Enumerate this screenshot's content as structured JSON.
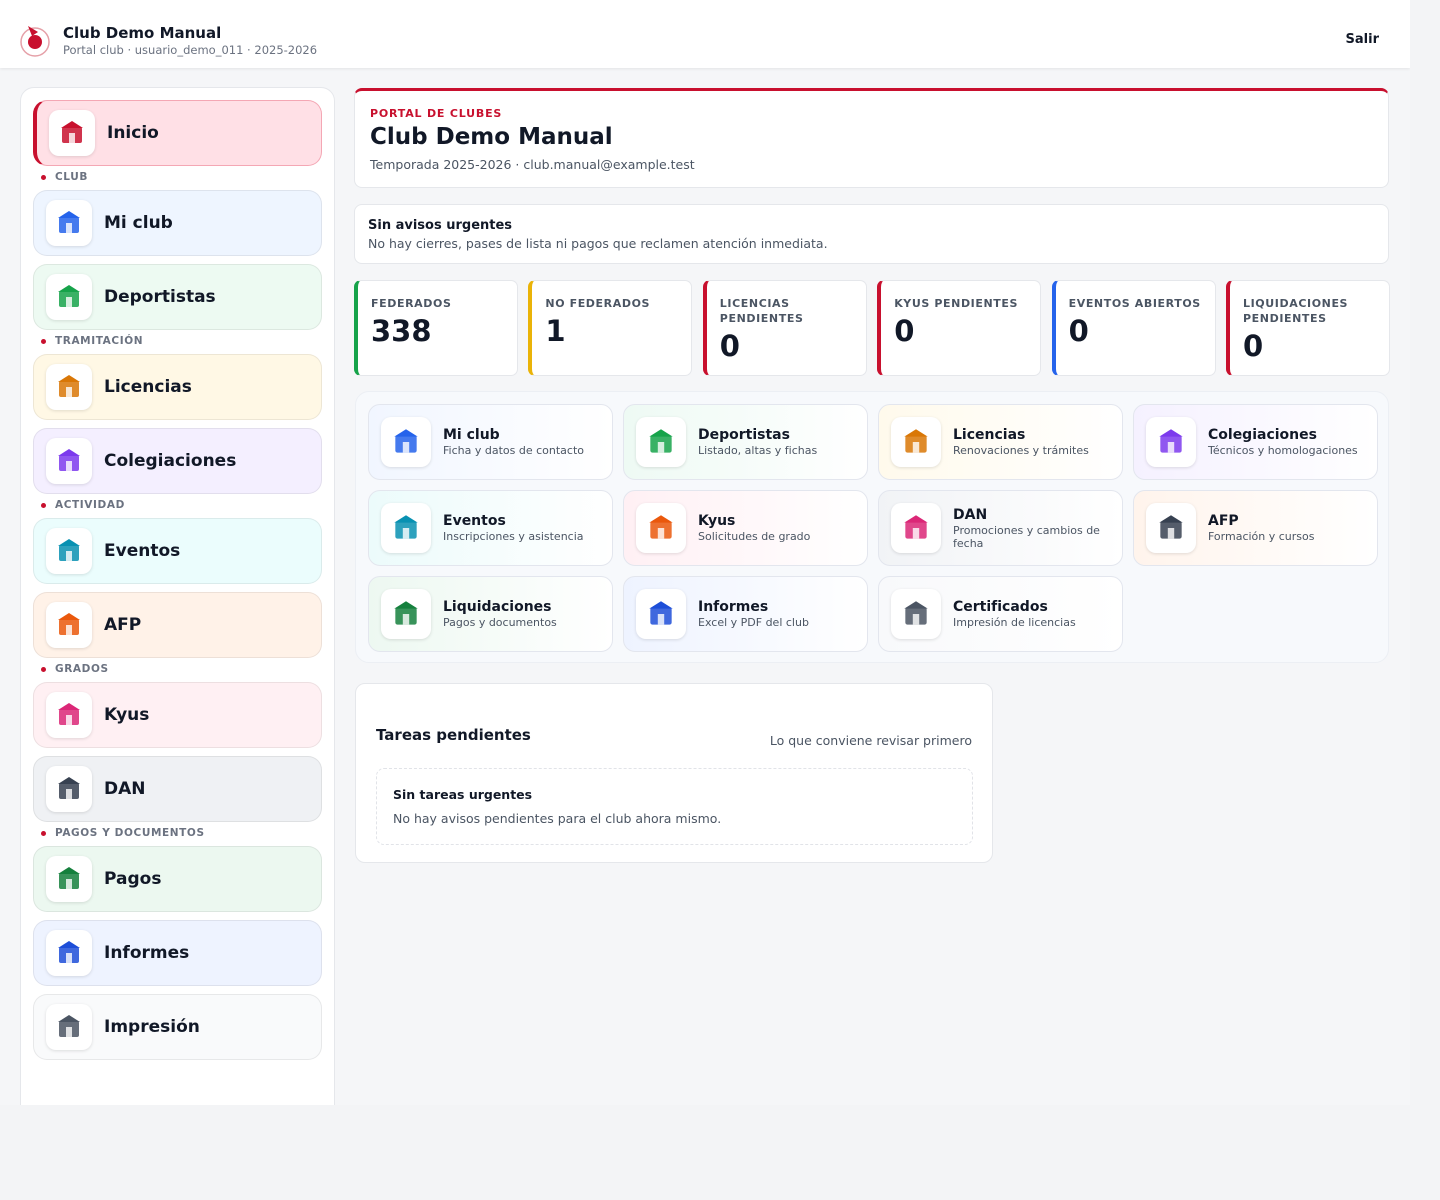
{
  "header": {
    "title": "Club Demo Manual",
    "subtitle": "Portal club · usuario_demo_011 · 2025-2026",
    "logout": "Salir"
  },
  "sidebar": {
    "home": "Inicio",
    "sections": [
      {
        "title": "CLUB",
        "items": [
          "Mi club",
          "Deportistas"
        ]
      },
      {
        "title": "TRAMITACIÓN",
        "items": [
          "Licencias",
          "Colegiaciones"
        ]
      },
      {
        "title": "ACTIVIDAD",
        "items": [
          "Eventos",
          "AFP"
        ]
      },
      {
        "title": "GRADOS",
        "items": [
          "Kyus",
          "DAN"
        ]
      },
      {
        "title": "PAGOS Y DOCUMENTOS",
        "items": [
          "Pagos",
          "Informes",
          "Impresión"
        ]
      }
    ]
  },
  "hero": {
    "kicker": "PORTAL DE CLUBES",
    "title": "Club Demo Manual",
    "subtitle": "Temporada 2025-2026 · club.manual@example.test"
  },
  "notice": {
    "title": "Sin avisos urgentes",
    "text": "No hay cierres, pases de lista ni pagos que reclamen atención inmediata."
  },
  "stats": [
    {
      "label": "FEDERADOS",
      "value": 338
    },
    {
      "label": "NO FEDERADOS",
      "value": 1
    },
    {
      "label": "LICENCIAS PENDIENTES",
      "value": 0
    },
    {
      "label": "KYUS PENDIENTES",
      "value": 0
    },
    {
      "label": "EVENTOS ABIERTOS",
      "value": 0
    },
    {
      "label": "LIQUIDACIONES PENDIENTES",
      "value": 0
    }
  ],
  "tiles": [
    {
      "title": "Mi club",
      "desc": "Ficha y datos de contacto"
    },
    {
      "title": "Deportistas",
      "desc": "Listado, altas y fichas"
    },
    {
      "title": "Licencias",
      "desc": "Renovaciones y trámites"
    },
    {
      "title": "Colegiaciones",
      "desc": "Técnicos y homologaciones"
    },
    {
      "title": "Eventos",
      "desc": "Inscripciones y asistencia"
    },
    {
      "title": "Kyus",
      "desc": "Solicitudes de grado"
    },
    {
      "title": "DAN",
      "desc": "Promociones y cambios de fecha"
    },
    {
      "title": "AFP",
      "desc": "Formación y cursos"
    },
    {
      "title": "Liquidaciones",
      "desc": "Pagos y documentos"
    },
    {
      "title": "Informes",
      "desc": "Excel y PDF del club"
    },
    {
      "title": "Certificados",
      "desc": "Impresión de licencias"
    }
  ],
  "tasks": {
    "title": "Tareas pendientes",
    "hint": "Lo que conviene revisar primero",
    "empty_title": "Sin tareas urgentes",
    "empty_text": "No hay avisos pendientes para el club ahora mismo."
  }
}
